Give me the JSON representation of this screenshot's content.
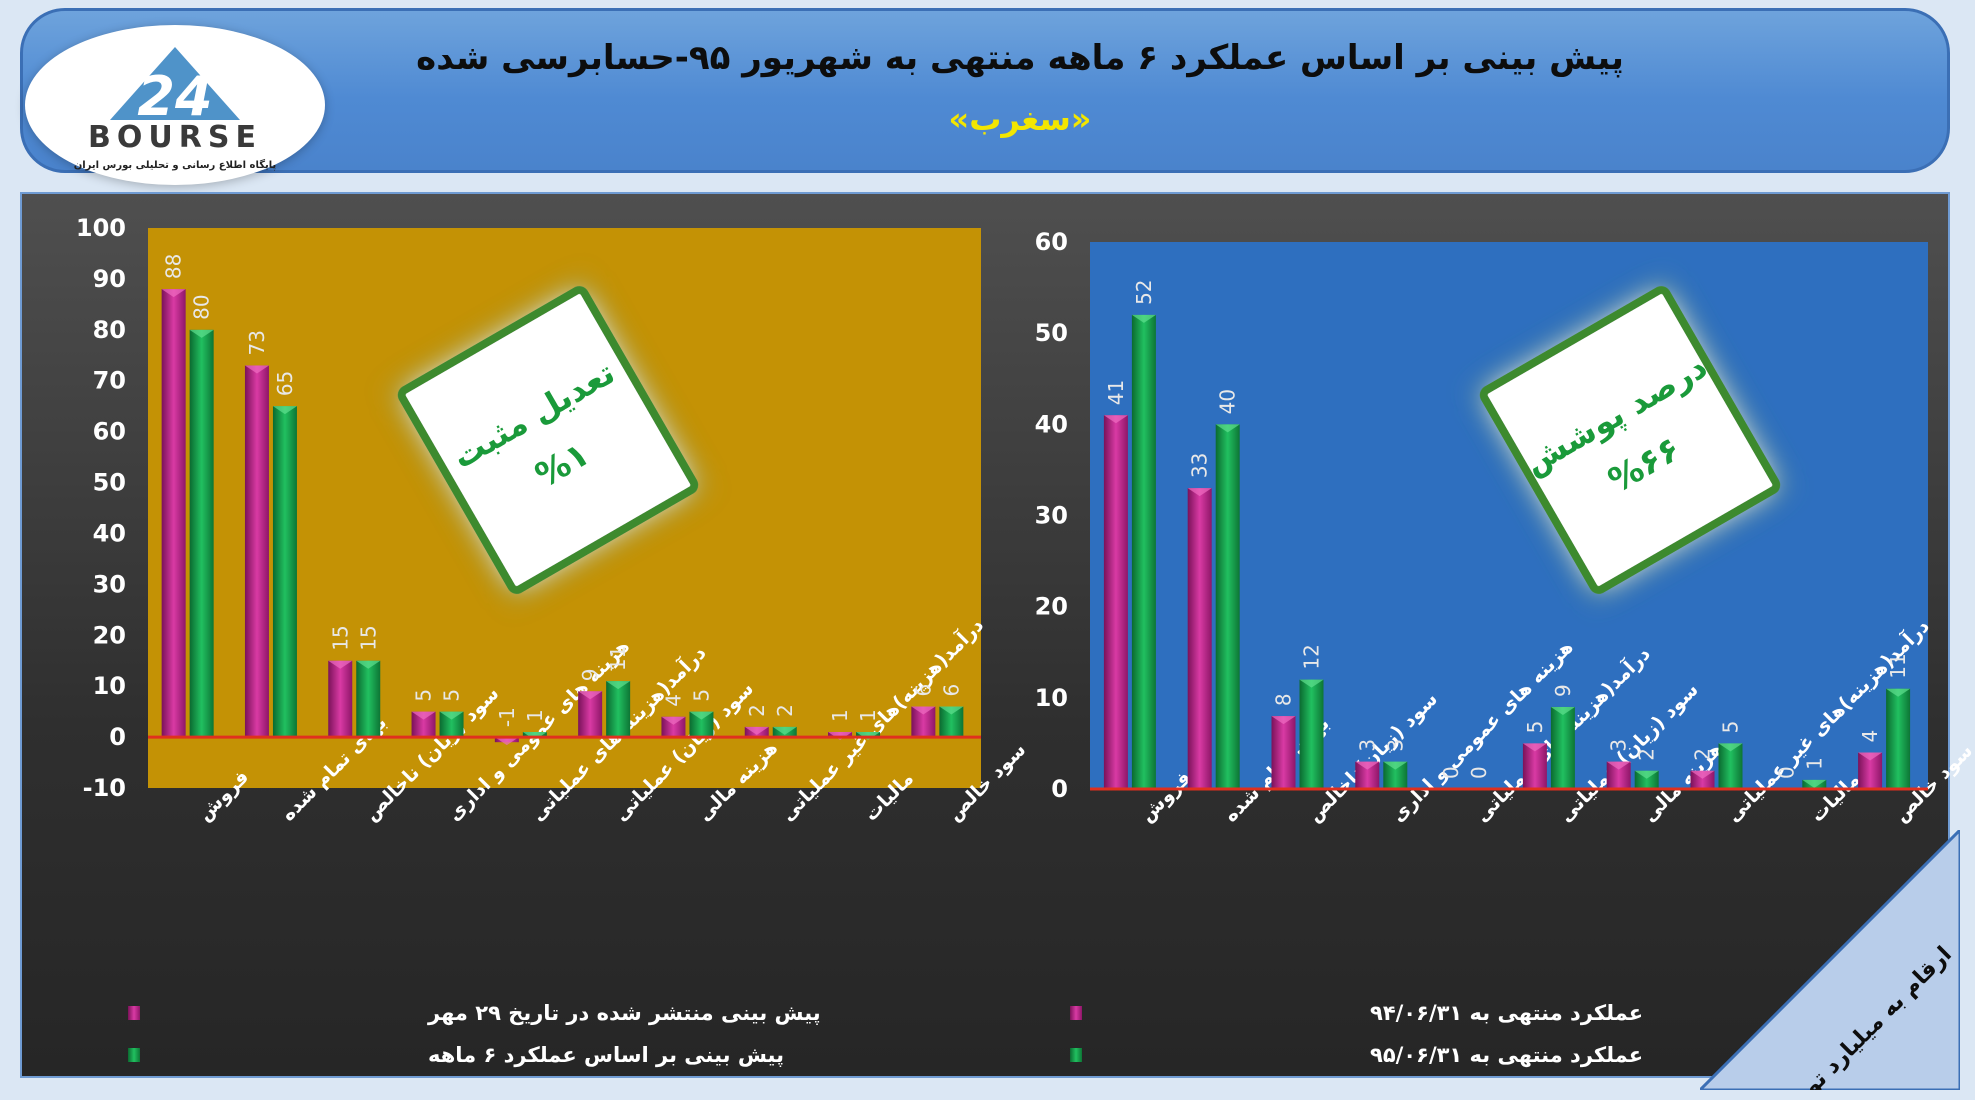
{
  "header": {
    "title": "پیش بینی بر اساس عملکرد ۶ ماهه منتهی به شهریور ۹۵-حسابرسی شده",
    "subtitle": "«سغرب»",
    "logo_text": "BOURSE",
    "logo_number": "24",
    "logo_tagline": "پایگاه اطلاع رسانی و تحلیلی بورس ایران"
  },
  "corner_note": "ارقام به میلیارد تومان",
  "colors": {
    "series_a": "#c2278e",
    "series_b": "#12a04a",
    "left_plot_bg": "#c49205",
    "right_plot_bg": "#2e6fbf",
    "zero_line": "#e0301e",
    "badge_text": "#1a9a3a"
  },
  "chart_data": [
    {
      "type": "bar",
      "categories": [
        "فروش",
        "بهای تمام شده",
        "سود (زیان) ناخالص",
        "هزینه های عمومی و اداری",
        "درآمد(هزینه)های عملیاتی",
        "سود (زیان) عملیاتی",
        "هزینه مالی",
        "درآمد(هزینه)های غیر عملیاتی",
        "مالیات",
        "سود خالص"
      ],
      "series": [
        {
          "name": "پیش بینی منتشر شده در تاریخ ۲۹ مهر",
          "values": [
            88,
            73,
            15,
            5,
            -1,
            9,
            4,
            2,
            1,
            6
          ]
        },
        {
          "name": "پیش بینی بر اساس عملکرد ۶ ماهه",
          "values": [
            80,
            65,
            15,
            5,
            1,
            11,
            5,
            2,
            1,
            6
          ]
        }
      ],
      "ylim": [
        -10,
        100
      ],
      "yticks": [
        -10,
        0,
        10,
        20,
        30,
        40,
        50,
        60,
        70,
        80,
        90,
        100
      ],
      "grid": false,
      "legend": "bottom-left",
      "badge": {
        "line1": "تعدیل مثبت",
        "line2": "%۱"
      }
    },
    {
      "type": "bar",
      "categories": [
        "فروش",
        "بهای تمام شده",
        "سود (زیان)ناخالص",
        "هزینه های عمومی و اداری",
        "درآمد(هزینه)های عملیاتی",
        "سود (زیان) عملیاتی",
        "هزینه مالی",
        "درآمد(هزینه)های غیر عملیاتی",
        "مالیات",
        "سود خالص"
      ],
      "series": [
        {
          "name": "عملکرد منتهی به ۹۴/۰۶/۳۱",
          "values": [
            41,
            33,
            8,
            3,
            0,
            5,
            3,
            2,
            0,
            4
          ]
        },
        {
          "name": "عملکرد منتهی به ۹۵/۰۶/۳۱",
          "values": [
            52,
            40,
            12,
            3,
            0,
            9,
            2,
            5,
            1,
            11
          ]
        }
      ],
      "ylim": [
        0,
        60
      ],
      "yticks": [
        0,
        10,
        20,
        30,
        40,
        50,
        60
      ],
      "grid": false,
      "legend": "bottom-left",
      "badge": {
        "line1": "درصد پوشش",
        "line2": "%۶۶"
      }
    }
  ]
}
